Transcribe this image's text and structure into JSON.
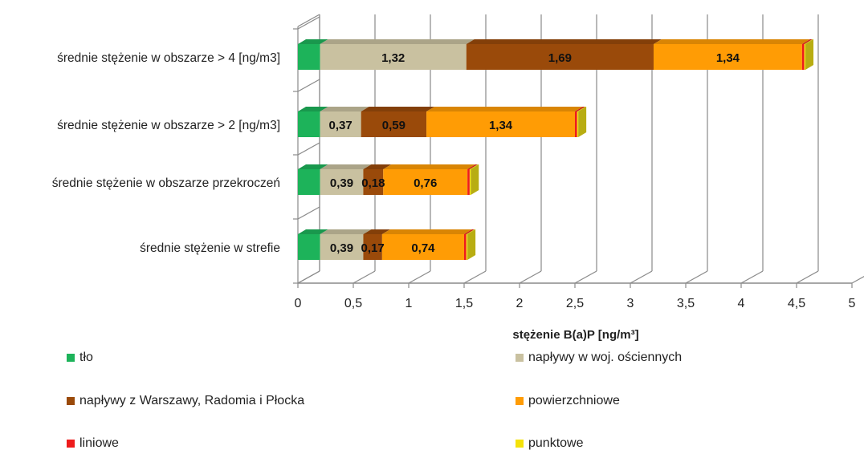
{
  "chart_data": {
    "type": "bar",
    "orientation": "horizontal",
    "stacked": true,
    "style": "3d",
    "categories": [
      "średnie stężenie w obszarze > 4 [ng/m3]",
      "średnie stężenie w obszarze > 2 [ng/m3]",
      "średnie stężenie w obszarze przekroczeń",
      "średnie stężenie w strefie"
    ],
    "series": [
      {
        "name": "tło",
        "color": "#1db35a",
        "values": [
          0.2,
          0.2,
          0.2,
          0.2
        ],
        "labels": [
          "",
          "",
          "",
          ""
        ]
      },
      {
        "name": "napływy w woj. ościennych",
        "color": "#c9c1a0",
        "values": [
          1.32,
          0.37,
          0.39,
          0.39
        ],
        "labels": [
          "1,32",
          "0,37",
          "0,39",
          "0,39"
        ]
      },
      {
        "name": "napływy z Warszawy, Radomia i Płocka",
        "color": "#9a4a0a",
        "values": [
          1.69,
          0.59,
          0.18,
          0.17
        ],
        "labels": [
          "1,69",
          "0,59",
          "0,18",
          "0,17"
        ]
      },
      {
        "name": "powierzchniowe",
        "color": "#ff9c05",
        "values": [
          1.34,
          1.34,
          0.76,
          0.74
        ],
        "labels": [
          "1,34",
          "1,34",
          "0,76",
          "0,74"
        ]
      },
      {
        "name": "liniowe",
        "color": "#ee1c1c",
        "values": [
          0.02,
          0.02,
          0.02,
          0.02
        ],
        "labels": [
          "",
          "",
          "",
          ""
        ]
      },
      {
        "name": "punktowe",
        "color": "#f4e20a",
        "values": [
          0.01,
          0.01,
          0.01,
          0.01
        ],
        "labels": [
          "",
          "",
          "",
          ""
        ]
      }
    ],
    "xlabel": "stężenie B(a)P [ng/m³]",
    "ylabel": "",
    "xlim": [
      0,
      5
    ],
    "xticks": [
      0,
      0.5,
      1,
      1.5,
      2,
      2.5,
      3,
      3.5,
      4,
      4.5,
      5
    ],
    "xtick_labels": [
      "0",
      "0,5",
      "1",
      "1,5",
      "2",
      "2,5",
      "3",
      "3,5",
      "4",
      "4,5",
      "5"
    ],
    "grid": true,
    "legend_position": "bottom"
  }
}
